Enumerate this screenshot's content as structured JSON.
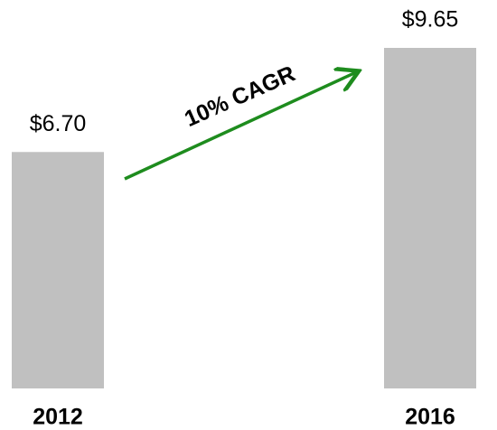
{
  "chart_data": {
    "type": "bar",
    "categories": [
      "2012",
      "2016"
    ],
    "values": [
      6.7,
      9.65
    ],
    "value_labels": [
      "$6.70",
      "$9.65"
    ],
    "color": "#c0c0c0",
    "annotations": [
      "10% CAGR"
    ]
  }
}
